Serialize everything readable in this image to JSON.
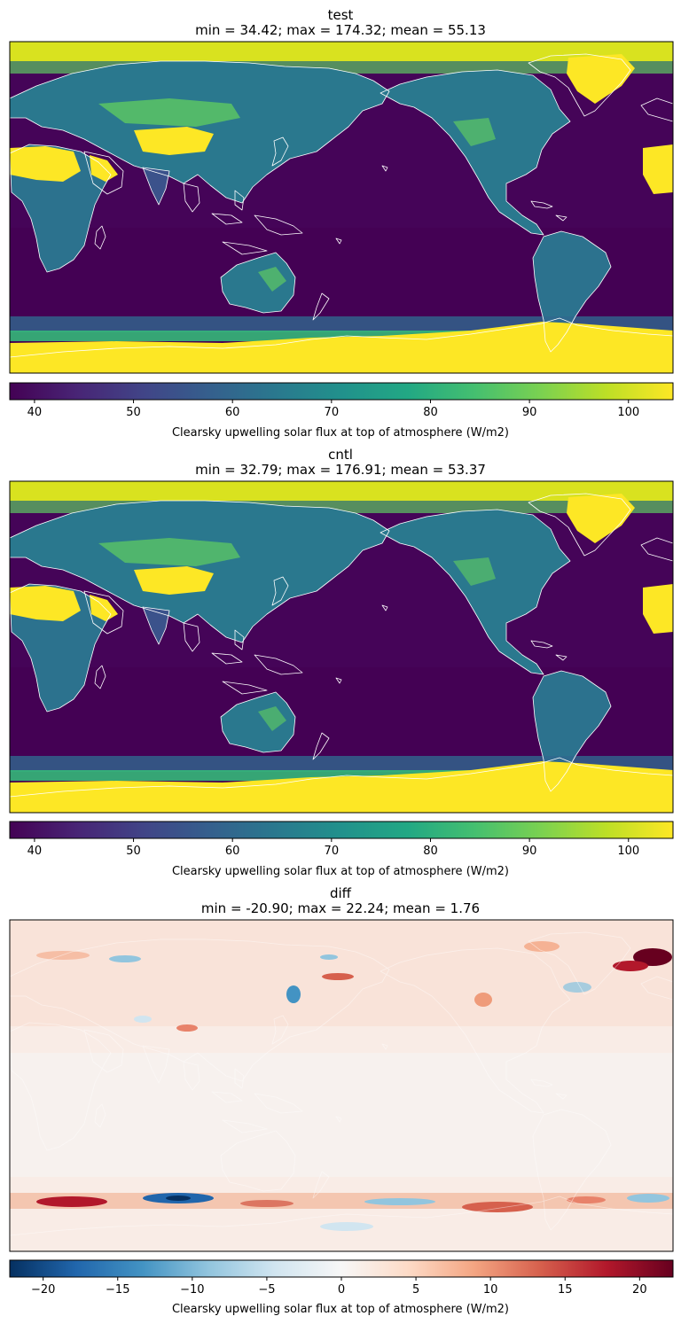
{
  "figure": {
    "panels": [
      {
        "title": "test",
        "subtitle": "min = 34.42; max = 174.32; mean = 55.13",
        "colorbar_label": "Clearsky upwelling solar flux at top of atmosphere (W/m2)"
      },
      {
        "title": "cntl",
        "subtitle": "min = 32.79; max = 176.91; mean = 53.37",
        "colorbar_label": "Clearsky upwelling solar flux at top of atmosphere (W/m2)"
      },
      {
        "title": "diff",
        "subtitle": "min = -20.90; max = 22.24; mean = 1.76",
        "colorbar_label": "Clearsky upwelling solar flux at top of atmosphere (W/m2)"
      }
    ]
  },
  "chart_data": [
    {
      "type": "heatmap",
      "title": "test",
      "subtitle": "min = 34.42; max = 174.32; mean = 55.13",
      "stats": {
        "min": 34.42,
        "max": 174.32,
        "mean": 55.13
      },
      "projection": "PlateCarree",
      "central_longitude": 180,
      "colormap": "viridis",
      "colorbar": {
        "label": "Clearsky upwelling solar flux at top of atmosphere (W/m2)",
        "range": [
          37.5,
          104.5
        ],
        "ticks": [
          40,
          50,
          60,
          70,
          80,
          90,
          100
        ],
        "tick_labels": [
          "40",
          "50",
          "60",
          "70",
          "80",
          "90",
          "100"
        ],
        "orientation": "horizontal"
      },
      "coastlines_color": "#ffffff"
    },
    {
      "type": "heatmap",
      "title": "cntl",
      "subtitle": "min = 32.79; max = 176.91; mean = 53.37",
      "stats": {
        "min": 32.79,
        "max": 176.91,
        "mean": 53.37
      },
      "projection": "PlateCarree",
      "central_longitude": 180,
      "colormap": "viridis",
      "colorbar": {
        "label": "Clearsky upwelling solar flux at top of atmosphere (W/m2)",
        "range": [
          37.5,
          104.5
        ],
        "ticks": [
          40,
          50,
          60,
          70,
          80,
          90,
          100
        ],
        "tick_labels": [
          "40",
          "50",
          "60",
          "70",
          "80",
          "90",
          "100"
        ],
        "orientation": "horizontal"
      },
      "coastlines_color": "#ffffff"
    },
    {
      "type": "heatmap",
      "title": "diff",
      "subtitle": "min = -20.90; max = 22.24; mean = 1.76",
      "stats": {
        "min": -20.9,
        "max": 22.24,
        "mean": 1.76
      },
      "projection": "PlateCarree",
      "central_longitude": 180,
      "colormap": "RdBu_r",
      "colorbar": {
        "label": "Clearsky upwelling solar flux at top of atmosphere (W/m2)",
        "range": [
          -22.24,
          22.24
        ],
        "ticks": [
          -20,
          -15,
          -10,
          -5,
          0,
          5,
          10,
          15,
          20
        ],
        "tick_labels": [
          "−20",
          "−15",
          "−10",
          "−5",
          "0",
          "5",
          "10",
          "15",
          "20"
        ],
        "orientation": "horizontal"
      },
      "coastlines_color": "#ffffff"
    }
  ]
}
